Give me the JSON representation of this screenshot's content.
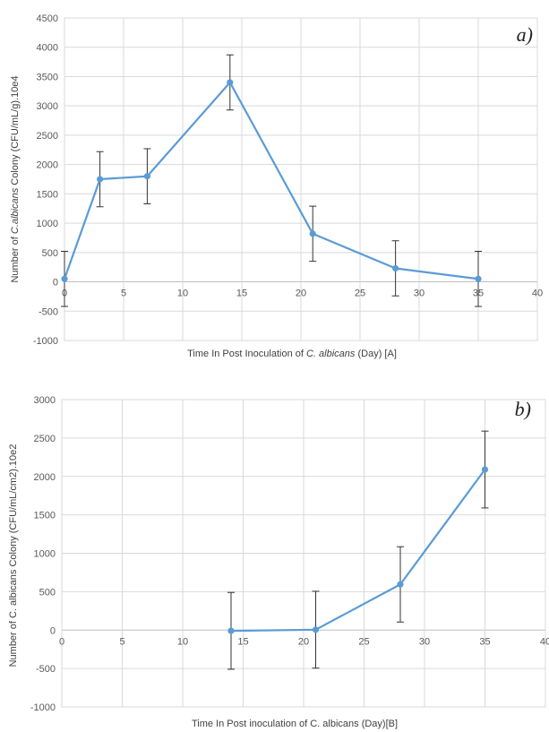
{
  "chart_data": [
    {
      "id": "a",
      "type": "line",
      "panel_label": "a)",
      "ylabel": {
        "before": "Number of ",
        "italic": "C.albicans",
        "after": " Colony (CFU/mL/g).10e4"
      },
      "xlabel": {
        "before": "Time In Post Inoculation of ",
        "italic": "C. albicans",
        "after": " (Day) [A]"
      },
      "xlim": [
        0,
        40
      ],
      "xticks": [
        0,
        5,
        10,
        15,
        20,
        25,
        30,
        35,
        40
      ],
      "ylim": [
        -1000,
        4500
      ],
      "yticks": [
        -1000,
        -500,
        0,
        500,
        1000,
        1500,
        2000,
        2500,
        3000,
        3500,
        4000,
        4500
      ],
      "grid": true,
      "line_color": "#5b9bd5",
      "x": [
        0,
        3,
        7,
        14,
        21,
        28,
        35
      ],
      "y": [
        50,
        1750,
        1800,
        3400,
        820,
        230,
        50
      ],
      "error": [
        470,
        470,
        470,
        470,
        470,
        470,
        470
      ]
    },
    {
      "id": "b",
      "type": "line",
      "panel_label": "b)",
      "ylabel": {
        "before": "Number of C. albicans Colony (CFU/mL/cm2).10e2",
        "italic": "",
        "after": ""
      },
      "xlabel": {
        "before": "Time In Post inoculation of C. albicans (Day)[B]",
        "italic": "",
        "after": ""
      },
      "xlim": [
        0,
        40
      ],
      "xticks": [
        0,
        5,
        10,
        15,
        20,
        25,
        30,
        35,
        40
      ],
      "ylim": [
        -1000,
        3000
      ],
      "yticks": [
        -1000,
        -500,
        0,
        500,
        1000,
        1500,
        2000,
        2500,
        3000
      ],
      "grid": true,
      "line_color": "#5b9bd5",
      "x": [
        14,
        21,
        28,
        35
      ],
      "y": [
        -10,
        5,
        595,
        2090
      ],
      "error": [
        500,
        500,
        490,
        500
      ]
    }
  ]
}
